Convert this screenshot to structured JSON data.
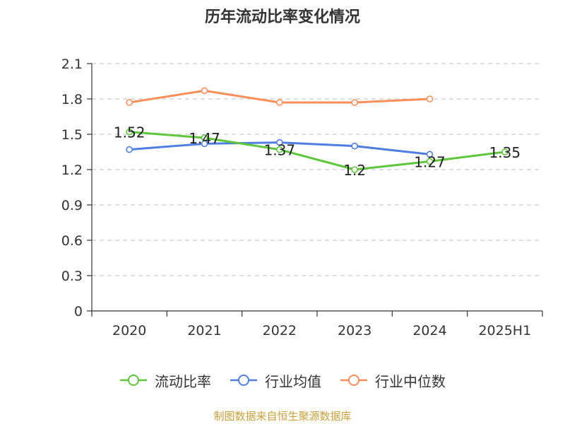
{
  "chart_data": {
    "type": "line",
    "title": "历年流动比率变化情况",
    "categories": [
      "2020",
      "2021",
      "2022",
      "2023",
      "2024",
      "2025H1"
    ],
    "ylim": [
      0,
      2.1
    ],
    "yticks": [
      "0",
      "0.3",
      "0.6",
      "0.9",
      "1.2",
      "1.5",
      "1.8",
      "2.1"
    ],
    "grid": true,
    "legend_position": "bottom",
    "series": [
      {
        "name": "流动比率",
        "color": "#5dc73b",
        "values": [
          1.52,
          1.47,
          1.37,
          1.2,
          1.27,
          1.35
        ],
        "labels": [
          "1.52",
          "1.47",
          "1.37",
          "1.2",
          "1.27",
          "1.35"
        ]
      },
      {
        "name": "行业均值",
        "color": "#4f7fe0",
        "values": [
          1.37,
          1.42,
          1.43,
          1.4,
          1.33,
          null
        ]
      },
      {
        "name": "行业中位数",
        "color": "#fa8f5a",
        "values": [
          1.77,
          1.87,
          1.77,
          1.77,
          1.8,
          null
        ]
      }
    ]
  },
  "source_text": "制图数据来自恒生聚源数据库"
}
